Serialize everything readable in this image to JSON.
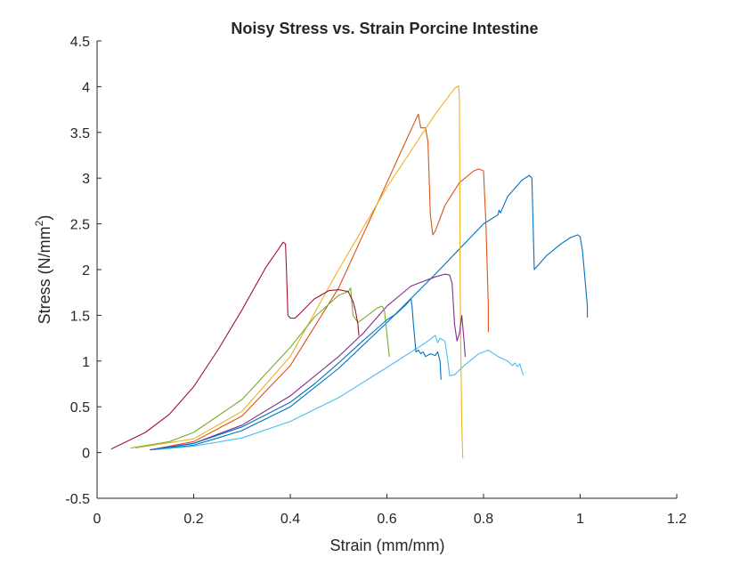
{
  "chart_data": {
    "type": "line",
    "title": "Noisy Stress vs. Strain Porcine Intestine",
    "xlabel": "Strain (mm/mm)",
    "ylabel_main": "Stress (N/mm",
    "ylabel_sup": "2",
    "ylabel_close": ")",
    "xlim": [
      0,
      1.2
    ],
    "ylim": [
      -0.5,
      4.5
    ],
    "xticks": [
      0,
      0.2,
      0.4,
      0.6,
      0.8,
      1,
      1.2
    ],
    "xtick_labels": [
      "0",
      "0.2",
      "0.4",
      "0.6",
      "0.8",
      "1",
      "1.2"
    ],
    "yticks": [
      -0.5,
      0,
      0.5,
      1,
      1.5,
      2,
      2.5,
      3,
      3.5,
      4,
      4.5
    ],
    "ytick_labels": [
      "-0.5",
      "0",
      "0.5",
      "1",
      "1.5",
      "2",
      "2.5",
      "3",
      "3.5",
      "4",
      "4.5"
    ],
    "grid": false,
    "legend": "none",
    "series": [
      {
        "color": "#0072BD",
        "x": [
          0.11,
          0.2,
          0.3,
          0.4,
          0.5,
          0.6,
          0.7,
          0.8,
          0.83,
          0.832,
          0.835,
          0.85,
          0.88,
          0.895,
          0.9,
          0.905,
          0.93,
          0.96,
          0.98,
          0.995,
          1.0,
          1.005,
          1.01,
          1.015,
          1.015
        ],
        "y": [
          0.03,
          0.08,
          0.24,
          0.5,
          0.92,
          1.42,
          1.95,
          2.5,
          2.6,
          2.65,
          2.62,
          2.8,
          2.98,
          3.03,
          3.0,
          2.0,
          2.15,
          2.28,
          2.35,
          2.38,
          2.36,
          2.2,
          1.9,
          1.6,
          1.48
        ]
      },
      {
        "color": "#D95319",
        "x": [
          0.11,
          0.2,
          0.3,
          0.4,
          0.5,
          0.6,
          0.63,
          0.665,
          0.67,
          0.68,
          0.685,
          0.69,
          0.695,
          0.7,
          0.72,
          0.75,
          0.78,
          0.79,
          0.8,
          0.805,
          0.81,
          0.81
        ],
        "y": [
          0.03,
          0.12,
          0.4,
          0.95,
          1.8,
          2.95,
          3.3,
          3.7,
          3.55,
          3.55,
          3.4,
          2.6,
          2.38,
          2.42,
          2.7,
          2.95,
          3.08,
          3.1,
          3.08,
          2.5,
          1.6,
          1.32
        ]
      },
      {
        "color": "#EDB120",
        "x": [
          0.08,
          0.2,
          0.3,
          0.4,
          0.5,
          0.6,
          0.7,
          0.74,
          0.748,
          0.75,
          0.752,
          0.755,
          0.757
        ],
        "y": [
          0.05,
          0.15,
          0.45,
          1.05,
          2.0,
          2.9,
          3.7,
          3.98,
          4.01,
          3.9,
          1.5,
          0.3,
          -0.06
        ]
      },
      {
        "color": "#7E2F8E",
        "x": [
          0.11,
          0.2,
          0.3,
          0.4,
          0.5,
          0.55,
          0.6,
          0.65,
          0.7,
          0.72,
          0.73,
          0.735,
          0.74,
          0.745,
          0.75,
          0.755,
          0.76,
          0.762
        ],
        "y": [
          0.03,
          0.1,
          0.3,
          0.62,
          1.05,
          1.3,
          1.6,
          1.82,
          1.92,
          1.95,
          1.94,
          1.85,
          1.4,
          1.22,
          1.3,
          1.5,
          1.2,
          1.05
        ]
      },
      {
        "color": "#77AC30",
        "x": [
          0.07,
          0.15,
          0.2,
          0.3,
          0.4,
          0.45,
          0.5,
          0.52,
          0.525,
          0.53,
          0.54,
          0.56,
          0.58,
          0.59,
          0.595,
          0.6,
          0.605
        ],
        "y": [
          0.05,
          0.12,
          0.22,
          0.58,
          1.15,
          1.48,
          1.72,
          1.76,
          1.8,
          1.5,
          1.42,
          1.5,
          1.58,
          1.6,
          1.55,
          1.3,
          1.05
        ]
      },
      {
        "color": "#4DBEEE",
        "x": [
          0.12,
          0.2,
          0.3,
          0.4,
          0.5,
          0.6,
          0.68,
          0.7,
          0.705,
          0.71,
          0.72,
          0.725,
          0.73,
          0.74,
          0.76,
          0.79,
          0.81,
          0.83,
          0.85,
          0.86,
          0.865,
          0.87,
          0.875,
          0.88,
          0.882
        ],
        "y": [
          0.03,
          0.07,
          0.16,
          0.34,
          0.6,
          0.93,
          1.2,
          1.28,
          1.2,
          1.25,
          1.22,
          1.05,
          0.84,
          0.85,
          0.95,
          1.08,
          1.12,
          1.05,
          1.0,
          0.95,
          0.98,
          0.94,
          0.97,
          0.88,
          0.85
        ]
      },
      {
        "color": "#A2142F",
        "x": [
          0.03,
          0.1,
          0.15,
          0.2,
          0.25,
          0.3,
          0.35,
          0.375,
          0.385,
          0.39,
          0.392,
          0.395,
          0.4,
          0.41,
          0.42,
          0.45,
          0.48,
          0.5,
          0.52,
          0.53,
          0.535,
          0.54,
          0.542
        ],
        "y": [
          0.04,
          0.22,
          0.42,
          0.72,
          1.12,
          1.56,
          2.03,
          2.22,
          2.3,
          2.28,
          2.0,
          1.5,
          1.47,
          1.47,
          1.52,
          1.68,
          1.77,
          1.78,
          1.76,
          1.65,
          1.55,
          1.4,
          1.28
        ]
      },
      {
        "color": "#0072BD",
        "x": [
          0.11,
          0.2,
          0.3,
          0.4,
          0.45,
          0.5,
          0.55,
          0.6,
          0.62,
          0.64,
          0.65,
          0.652,
          0.655,
          0.66,
          0.665,
          0.67,
          0.675,
          0.68,
          0.69,
          0.7,
          0.705,
          0.71,
          0.712
        ],
        "y": [
          0.03,
          0.1,
          0.28,
          0.55,
          0.75,
          0.98,
          1.22,
          1.45,
          1.52,
          1.62,
          1.68,
          1.6,
          1.4,
          1.1,
          1.12,
          1.08,
          1.1,
          1.05,
          1.08,
          1.06,
          1.1,
          1.0,
          0.8
        ]
      }
    ]
  }
}
